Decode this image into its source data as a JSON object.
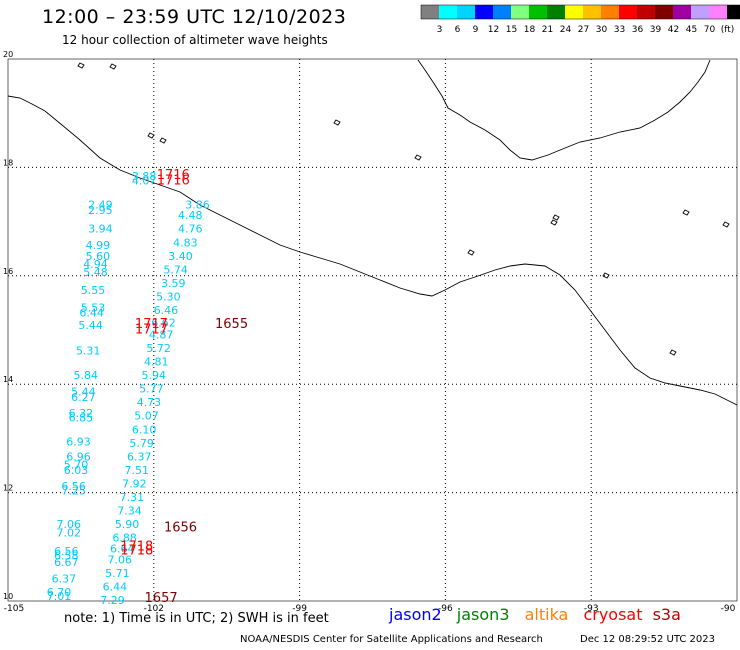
{
  "header": {
    "title": "12:00 – 23:59 UTC 12/10/2023",
    "subtitle": "12 hour collection of altimeter wave heights"
  },
  "colorbar": {
    "unit": "(ft)",
    "labels": [
      "3",
      "6",
      "9",
      "12",
      "15",
      "18",
      "21",
      "24",
      "27",
      "30",
      "33",
      "36",
      "39",
      "42",
      "45",
      "70"
    ],
    "colors": [
      "#808080",
      "#00ffff",
      "#00d4ff",
      "#0000ff",
      "#0080ff",
      "#80ff80",
      "#00c000",
      "#008000",
      "#ffff00",
      "#ffc000",
      "#ff8000",
      "#ff0000",
      "#c00000",
      "#800000",
      "#a000a0",
      "#c0a0ff",
      "#ff80ff",
      "#000000"
    ]
  },
  "footer": {
    "note": "note:  1) Time is in UTC;  2) SWH is in feet",
    "credit": "NOAA/NESDIS Center for Satellite Applications and Research",
    "stamp": "Dec 12 08:29:52 UTC 2023"
  },
  "legend": [
    {
      "name": "jason2",
      "color": "#0000ff"
    },
    {
      "name": "jason3",
      "color": "#008000"
    },
    {
      "name": "altika",
      "color": "#ff8000"
    },
    {
      "name": "cryosat",
      "color": "#ff0000"
    },
    {
      "name": "s3a",
      "color": "#c00000"
    }
  ],
  "chart_data": {
    "type": "scatter",
    "title": "12:00 – 23:59 UTC 12/10/2023",
    "subtitle": "12 hour collection of altimeter wave heights",
    "xlabel": "",
    "ylabel": "",
    "xlim": [
      -105,
      -90
    ],
    "ylim": [
      10,
      20
    ],
    "grid": true,
    "x_ticks": [
      "-105",
      "-102",
      "-99",
      "-96",
      "-93",
      "-90"
    ],
    "y_ticks": [
      "10",
      "12",
      "14",
      "16",
      "18",
      "20"
    ],
    "coastline_color": "#000000",
    "series": [
      {
        "name": "jason2",
        "color": "#00ccff",
        "points": [
          {
            "lon": -102.2,
            "lat": 17.82,
            "label": "3.88"
          },
          {
            "lon": -102.2,
            "lat": 17.74,
            "label": "4.07"
          },
          {
            "lon": -101.1,
            "lat": 17.3,
            "label": "3.86"
          },
          {
            "lon": -101.25,
            "lat": 17.1,
            "label": "4.48"
          },
          {
            "lon": -101.25,
            "lat": 16.85,
            "label": "4.76"
          },
          {
            "lon": -101.35,
            "lat": 16.6,
            "label": "4.83"
          },
          {
            "lon": -101.45,
            "lat": 16.35,
            "label": "3.40"
          },
          {
            "lon": -101.55,
            "lat": 16.1,
            "label": "5.74"
          },
          {
            "lon": -101.6,
            "lat": 15.85,
            "label": "3.59"
          },
          {
            "lon": -101.7,
            "lat": 15.6,
            "label": "5.30"
          },
          {
            "lon": -101.75,
            "lat": 15.35,
            "label": "6.46"
          },
          {
            "lon": -101.8,
            "lat": 15.12,
            "label": "6.62"
          },
          {
            "lon": -101.85,
            "lat": 14.9,
            "label": "4.87"
          },
          {
            "lon": -101.9,
            "lat": 14.65,
            "label": "5.72"
          },
          {
            "lon": -101.95,
            "lat": 14.4,
            "label": "4.81"
          },
          {
            "lon": -102.0,
            "lat": 14.15,
            "label": "5.94"
          },
          {
            "lon": -102.05,
            "lat": 13.9,
            "label": "5.77"
          },
          {
            "lon": -102.1,
            "lat": 13.65,
            "label": "4.73"
          },
          {
            "lon": -102.15,
            "lat": 13.4,
            "label": "5.07"
          },
          {
            "lon": -102.2,
            "lat": 13.15,
            "label": "6.10"
          },
          {
            "lon": -102.25,
            "lat": 12.9,
            "label": "5.79"
          },
          {
            "lon": -102.3,
            "lat": 12.65,
            "label": "6.37"
          },
          {
            "lon": -102.35,
            "lat": 12.4,
            "label": "7.51"
          },
          {
            "lon": -102.4,
            "lat": 12.15,
            "label": "7.92"
          },
          {
            "lon": -102.45,
            "lat": 11.9,
            "label": "7.31"
          },
          {
            "lon": -102.5,
            "lat": 11.65,
            "label": "7.34"
          },
          {
            "lon": -102.55,
            "lat": 11.4,
            "label": "5.90"
          },
          {
            "lon": -102.6,
            "lat": 11.15,
            "label": "6.88"
          },
          {
            "lon": -102.65,
            "lat": 10.95,
            "label": "6.64"
          },
          {
            "lon": -102.7,
            "lat": 10.75,
            "label": "7.06"
          },
          {
            "lon": -102.75,
            "lat": 10.5,
            "label": "5.71"
          },
          {
            "lon": -102.8,
            "lat": 10.25,
            "label": "6.44"
          },
          {
            "lon": -102.85,
            "lat": 10.0,
            "label": "7.29"
          },
          {
            "lon": -103.1,
            "lat": 17.3,
            "label": "2.49"
          },
          {
            "lon": -103.1,
            "lat": 17.2,
            "label": "2.95"
          },
          {
            "lon": -103.1,
            "lat": 16.85,
            "label": "3.94"
          },
          {
            "lon": -103.15,
            "lat": 16.55,
            "label": "4.99"
          },
          {
            "lon": -103.15,
            "lat": 16.35,
            "label": "5.60"
          },
          {
            "lon": -103.2,
            "lat": 16.2,
            "label": "4.94"
          },
          {
            "lon": -103.2,
            "lat": 16.05,
            "label": "5.48"
          },
          {
            "lon": -103.25,
            "lat": 15.72,
            "label": "5.55"
          },
          {
            "lon": -103.25,
            "lat": 15.4,
            "label": "5.53"
          },
          {
            "lon": -103.28,
            "lat": 15.3,
            "label": "6.44"
          },
          {
            "lon": -103.3,
            "lat": 15.07,
            "label": "5.44"
          },
          {
            "lon": -103.35,
            "lat": 14.6,
            "label": "5.31"
          },
          {
            "lon": -103.4,
            "lat": 14.15,
            "label": "5.84"
          },
          {
            "lon": -103.45,
            "lat": 13.85,
            "label": "5.44"
          },
          {
            "lon": -103.45,
            "lat": 13.75,
            "label": "6.27"
          },
          {
            "lon": -103.5,
            "lat": 13.45,
            "label": "6.32"
          },
          {
            "lon": -103.5,
            "lat": 13.37,
            "label": "6.85"
          },
          {
            "lon": -103.55,
            "lat": 12.92,
            "label": "6.93"
          },
          {
            "lon": -103.55,
            "lat": 12.65,
            "label": "6.96"
          },
          {
            "lon": -103.6,
            "lat": 12.5,
            "label": "5.70"
          },
          {
            "lon": -103.6,
            "lat": 12.4,
            "label": "6.03"
          },
          {
            "lon": -103.65,
            "lat": 12.1,
            "label": "6.56"
          },
          {
            "lon": -103.65,
            "lat": 12.02,
            "label": "7.25"
          },
          {
            "lon": -103.75,
            "lat": 11.4,
            "label": "7.06"
          },
          {
            "lon": -103.75,
            "lat": 11.25,
            "label": "7.02"
          },
          {
            "lon": -103.8,
            "lat": 10.9,
            "label": "6.56"
          },
          {
            "lon": -103.8,
            "lat": 10.82,
            "label": "6.58"
          },
          {
            "lon": -103.8,
            "lat": 10.7,
            "label": "6.67"
          },
          {
            "lon": -103.85,
            "lat": 10.4,
            "label": "6.37"
          },
          {
            "lon": -103.95,
            "lat": 10.15,
            "label": "6.70"
          },
          {
            "lon": -103.95,
            "lat": 10.07,
            "label": "7.01"
          }
        ]
      },
      {
        "name": "cryosat",
        "color": "#ff0000",
        "points": [
          {
            "lon": -101.6,
            "lat": 17.85,
            "label": "1716"
          },
          {
            "lon": -101.6,
            "lat": 17.75,
            "label": "1716"
          },
          {
            "lon": -102.05,
            "lat": 15.1,
            "label": "1717"
          },
          {
            "lon": -102.05,
            "lat": 15.0,
            "label": "1717"
          },
          {
            "lon": -102.35,
            "lat": 11.0,
            "label": "1718"
          },
          {
            "lon": -102.35,
            "lat": 10.92,
            "label": "1718"
          }
        ]
      },
      {
        "name": "s3a",
        "color": "#800000",
        "points": [
          {
            "lon": -100.4,
            "lat": 15.1,
            "label": "1655"
          },
          {
            "lon": -101.45,
            "lat": 11.35,
            "label": "1656"
          },
          {
            "lon": -101.85,
            "lat": 10.05,
            "label": "1657"
          }
        ]
      }
    ],
    "annotations": []
  }
}
